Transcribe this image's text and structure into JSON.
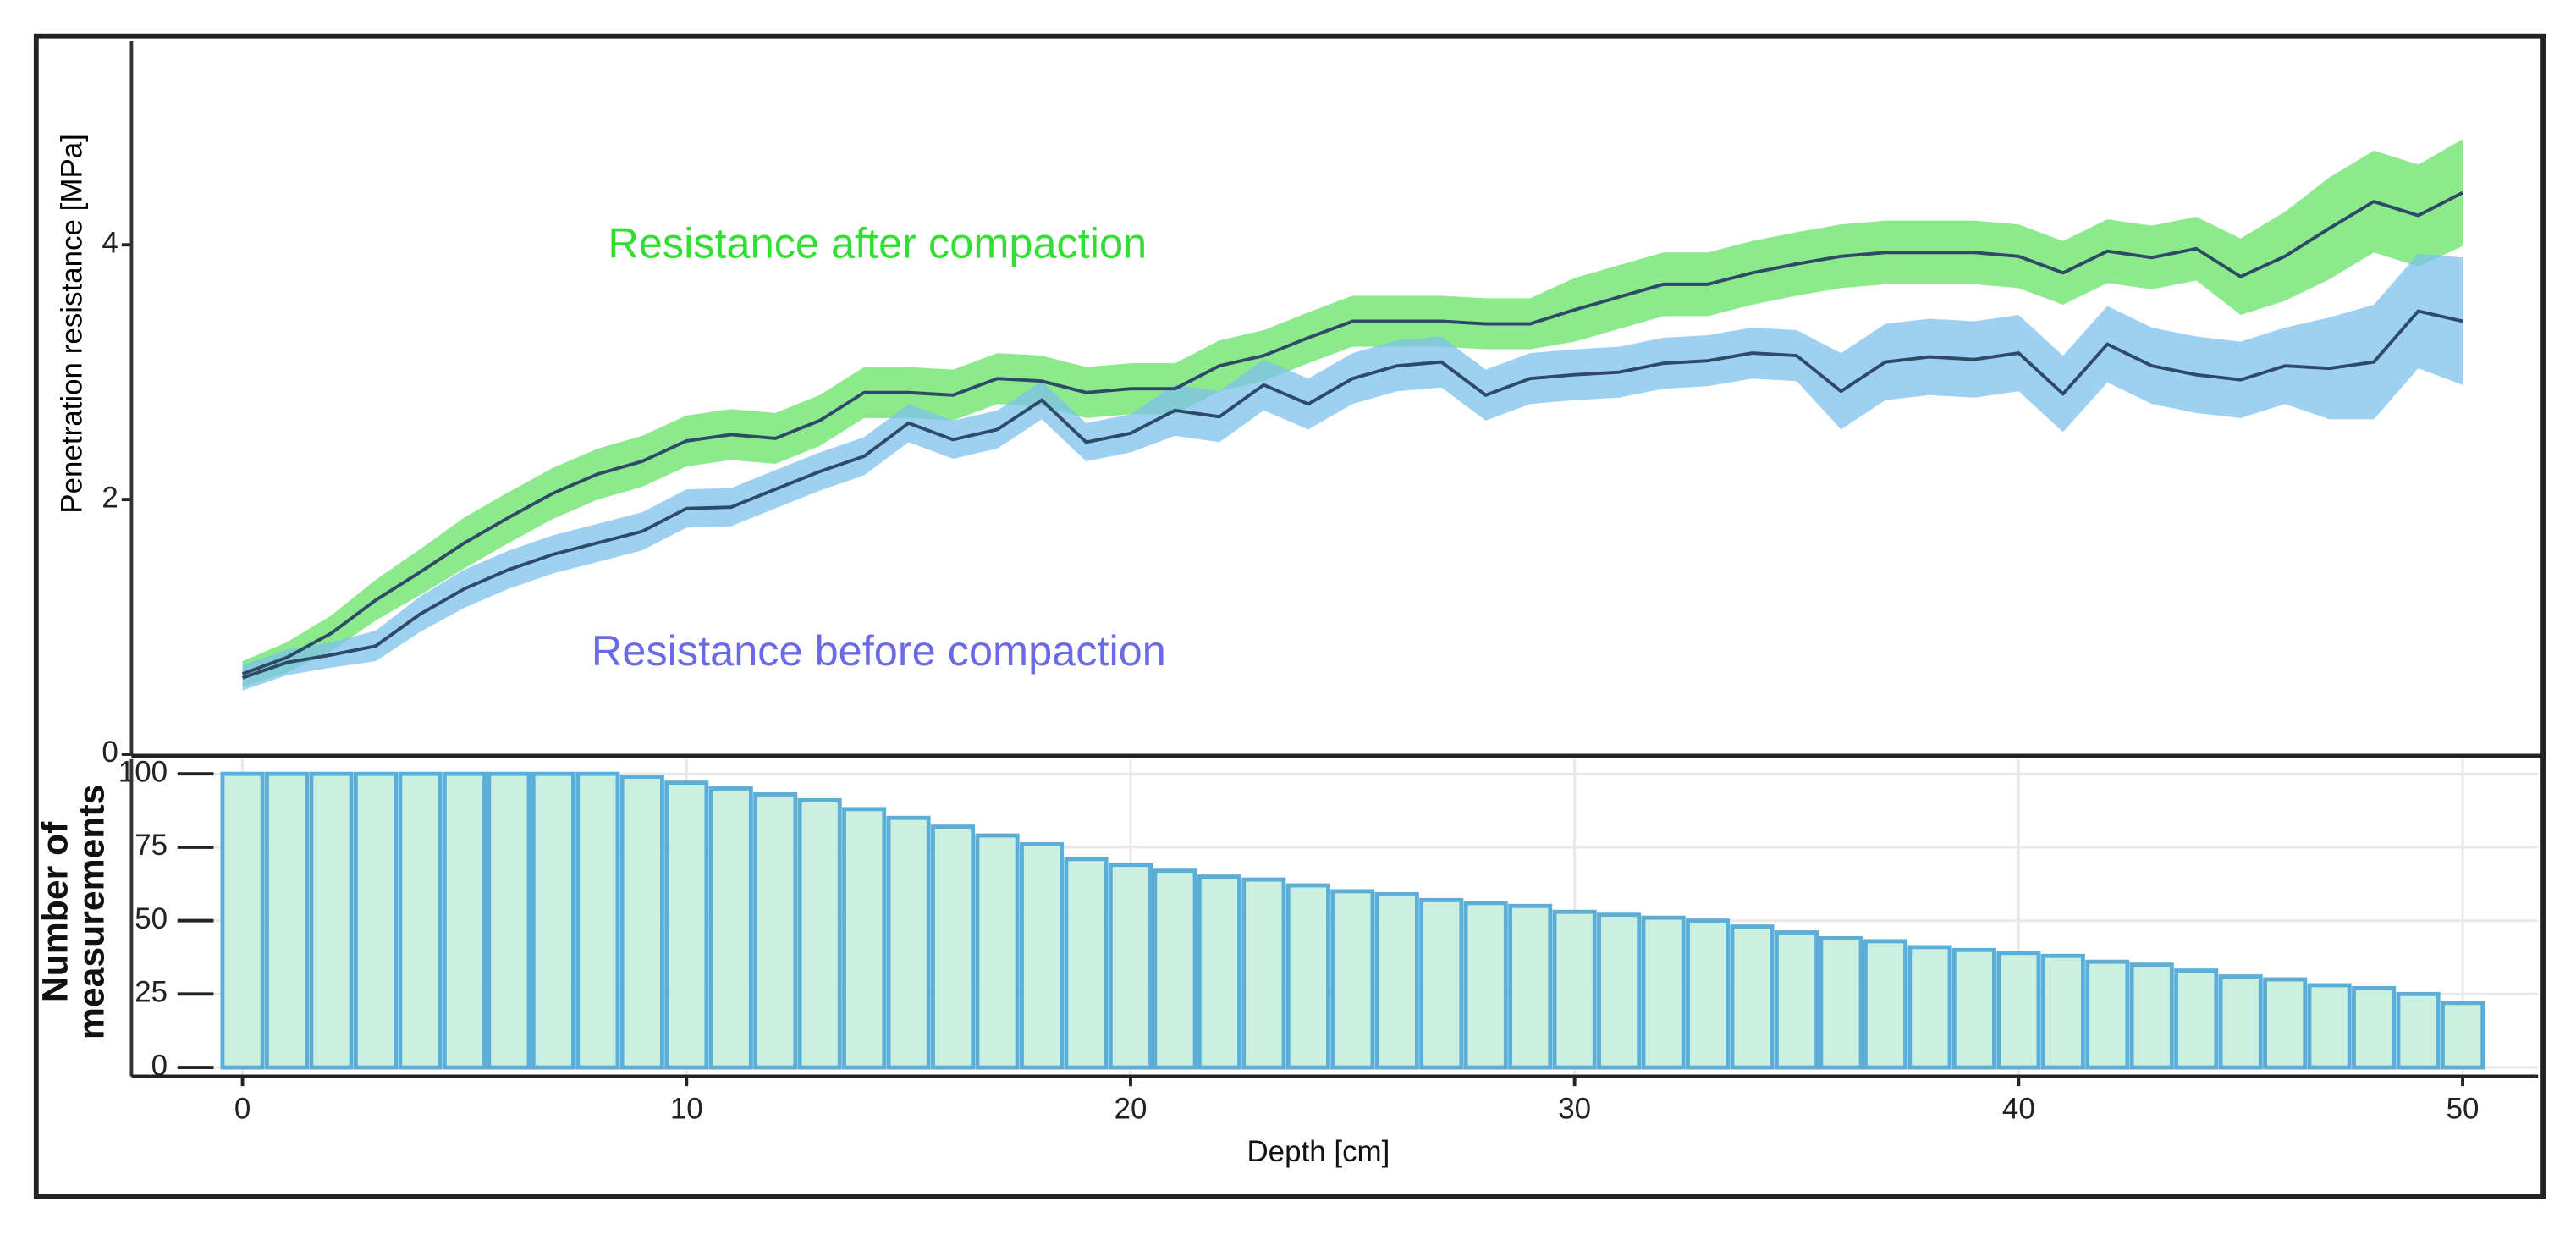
{
  "chart_data": [
    {
      "type": "line",
      "ylabel": "Penetration resistance [MPa]",
      "x": [
        0,
        1,
        2,
        3,
        4,
        5,
        6,
        7,
        8,
        9,
        10,
        11,
        12,
        13,
        14,
        15,
        16,
        17,
        18,
        19,
        20,
        21,
        22,
        23,
        24,
        25,
        26,
        27,
        28,
        29,
        30,
        31,
        32,
        33,
        34,
        35,
        36,
        37,
        38,
        39,
        40,
        41,
        42,
        43,
        44,
        45,
        46,
        47,
        48,
        49,
        50
      ],
      "xlim": [
        -2.5,
        51.7
      ],
      "ylim": [
        0,
        5.6
      ],
      "yticks": [
        0,
        2,
        4
      ],
      "line_color": "#2f4a66",
      "series": [
        {
          "name": "Resistance after compaction",
          "color": "#66e266",
          "label_color": "#33dd33",
          "values": [
            0.63,
            0.76,
            0.95,
            1.21,
            1.43,
            1.66,
            1.86,
            2.05,
            2.2,
            2.3,
            2.46,
            2.51,
            2.48,
            2.62,
            2.84,
            2.84,
            2.82,
            2.95,
            2.93,
            2.84,
            2.87,
            2.87,
            3.05,
            3.13,
            3.27,
            3.4,
            3.4,
            3.4,
            3.38,
            3.38,
            3.49,
            3.59,
            3.69,
            3.69,
            3.78,
            3.85,
            3.91,
            3.94,
            3.94,
            3.94,
            3.91,
            3.78,
            3.95,
            3.9,
            3.97,
            3.75,
            3.91,
            4.13,
            4.34,
            4.23,
            4.41
          ],
          "errors": [
            0.1,
            0.12,
            0.14,
            0.16,
            0.18,
            0.2,
            0.2,
            0.2,
            0.2,
            0.2,
            0.2,
            0.2,
            0.2,
            0.2,
            0.2,
            0.2,
            0.2,
            0.2,
            0.2,
            0.2,
            0.2,
            0.2,
            0.2,
            0.2,
            0.2,
            0.2,
            0.2,
            0.2,
            0.2,
            0.2,
            0.25,
            0.25,
            0.25,
            0.25,
            0.25,
            0.25,
            0.25,
            0.25,
            0.25,
            0.25,
            0.25,
            0.25,
            0.25,
            0.25,
            0.25,
            0.3,
            0.35,
            0.4,
            0.4,
            0.4,
            0.42
          ]
        },
        {
          "name": "Resistance before compaction",
          "color": "#7ec1ec",
          "label_color": "#6a6ae8",
          "values": [
            0.6,
            0.72,
            0.78,
            0.85,
            1.1,
            1.3,
            1.45,
            1.57,
            1.66,
            1.75,
            1.93,
            1.94,
            2.08,
            2.22,
            2.34,
            2.6,
            2.47,
            2.55,
            2.78,
            2.45,
            2.52,
            2.7,
            2.65,
            2.9,
            2.75,
            2.95,
            3.05,
            3.08,
            2.82,
            2.95,
            2.98,
            3.0,
            3.07,
            3.09,
            3.15,
            3.13,
            2.85,
            3.08,
            3.12,
            3.1,
            3.15,
            2.83,
            3.22,
            3.05,
            2.98,
            2.94,
            3.05,
            3.03,
            3.08,
            3.48,
            3.4
          ],
          "errors": [
            0.1,
            0.1,
            0.1,
            0.12,
            0.14,
            0.15,
            0.15,
            0.15,
            0.15,
            0.15,
            0.15,
            0.15,
            0.15,
            0.15,
            0.15,
            0.15,
            0.15,
            0.15,
            0.15,
            0.15,
            0.15,
            0.2,
            0.2,
            0.2,
            0.2,
            0.2,
            0.2,
            0.2,
            0.2,
            0.2,
            0.2,
            0.2,
            0.2,
            0.2,
            0.2,
            0.2,
            0.3,
            0.3,
            0.3,
            0.3,
            0.3,
            0.3,
            0.3,
            0.3,
            0.3,
            0.3,
            0.3,
            0.4,
            0.45,
            0.45,
            0.5
          ]
        }
      ]
    },
    {
      "type": "bar",
      "xlabel": "Depth [cm]",
      "ylabel": "Number of measurements",
      "x": [
        0,
        1,
        2,
        3,
        4,
        5,
        6,
        7,
        8,
        9,
        10,
        11,
        12,
        13,
        14,
        15,
        16,
        17,
        18,
        19,
        20,
        21,
        22,
        23,
        24,
        25,
        26,
        27,
        28,
        29,
        30,
        31,
        32,
        33,
        34,
        35,
        36,
        37,
        38,
        39,
        40,
        41,
        42,
        43,
        44,
        45,
        46,
        47,
        48,
        49,
        50
      ],
      "values": [
        100,
        100,
        100,
        100,
        100,
        100,
        100,
        100,
        100,
        99,
        97,
        95,
        93,
        91,
        88,
        85,
        82,
        79,
        76,
        71,
        69,
        67,
        65,
        64,
        62,
        60,
        59,
        57,
        56,
        55,
        53,
        52,
        51,
        50,
        48,
        46,
        44,
        43,
        41,
        40,
        39,
        38,
        36,
        35,
        33,
        31,
        30,
        28,
        27,
        25,
        22
      ],
      "color": "#ccf0e0",
      "edge_color": "#5aaed8",
      "xlim": [
        -2.5,
        51.7
      ],
      "ylim": [
        -3,
        105
      ],
      "xticks": [
        0,
        10,
        20,
        30,
        40,
        50
      ],
      "yticks": [
        0,
        25,
        50,
        75,
        100
      ],
      "grid": true
    }
  ]
}
